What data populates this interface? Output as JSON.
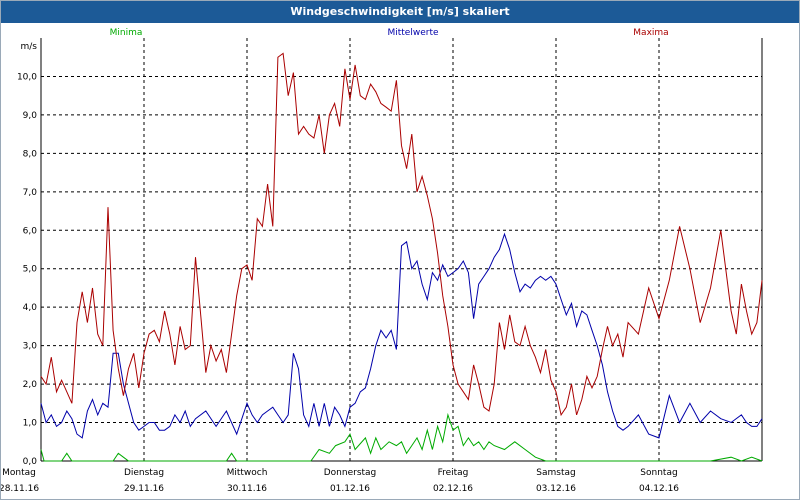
{
  "window": {
    "title": "Windgeschwindigkeit [m/s] skaliert"
  },
  "colors": {
    "minima": "#00aa00",
    "mittelwerte": "#0000aa",
    "maxima": "#aa0000",
    "titlebar": "#1c5a97"
  },
  "chart_data": {
    "type": "line",
    "title": "Windgeschwindigkeit [m/s] skaliert",
    "ylabel": "m/s",
    "ylim": [
      0,
      11
    ],
    "xlim": [
      0,
      7
    ],
    "yticks": [
      "0,0",
      "1,0",
      "2,0",
      "3,0",
      "4,0",
      "5,0",
      "6,0",
      "7,0",
      "8,0",
      "9,0",
      "10,0"
    ],
    "days": [
      {
        "name": "Montag",
        "date": "28.11.16"
      },
      {
        "name": "Dienstag",
        "date": "29.11.16"
      },
      {
        "name": "Mittwoch",
        "date": "30.11.16"
      },
      {
        "name": "Donnerstag",
        "date": "01.12.16"
      },
      {
        "name": "Freitag",
        "date": "02.12.16"
      },
      {
        "name": "Samstag",
        "date": "03.12.16"
      },
      {
        "name": "Sonntag",
        "date": "04.12.16"
      }
    ],
    "legend_position": "top",
    "series": [
      {
        "key": "minima",
        "name": "Minima",
        "x": [
          0,
          0.03,
          0.06,
          0.1,
          0.2,
          0.25,
          0.3,
          0.5,
          0.7,
          0.75,
          0.8,
          0.85,
          1.0,
          1.5,
          1.8,
          1.85,
          1.9,
          2.5,
          2.62,
          2.7,
          2.8,
          2.86,
          2.95,
          3.0,
          3.05,
          3.15,
          3.2,
          3.25,
          3.3,
          3.38,
          3.45,
          3.5,
          3.55,
          3.6,
          3.65,
          3.7,
          3.75,
          3.8,
          3.85,
          3.9,
          3.95,
          4.0,
          4.05,
          4.1,
          4.15,
          4.2,
          4.25,
          4.3,
          4.35,
          4.4,
          4.5,
          4.6,
          4.7,
          4.8,
          4.9,
          5.0,
          6.5,
          6.7,
          6.8,
          6.9,
          7.0
        ],
        "values": [
          0.3,
          0.0,
          0.0,
          0.0,
          0.0,
          0.2,
          0.0,
          0.0,
          0.0,
          0.2,
          0.1,
          0.0,
          0.0,
          0.0,
          0.0,
          0.2,
          0.0,
          0.0,
          0.0,
          0.3,
          0.2,
          0.4,
          0.5,
          0.7,
          0.3,
          0.6,
          0.2,
          0.6,
          0.3,
          0.5,
          0.4,
          0.5,
          0.2,
          0.4,
          0.6,
          0.3,
          0.8,
          0.3,
          0.9,
          0.5,
          1.2,
          0.8,
          0.9,
          0.4,
          0.6,
          0.4,
          0.5,
          0.3,
          0.5,
          0.4,
          0.3,
          0.5,
          0.3,
          0.1,
          0.0,
          0.0,
          0.0,
          0.1,
          0.0,
          0.1,
          0.0
        ]
      },
      {
        "key": "mittelwerte",
        "name": "Mittelwerte",
        "x": [
          0,
          0.05,
          0.1,
          0.15,
          0.2,
          0.25,
          0.3,
          0.35,
          0.4,
          0.45,
          0.5,
          0.55,
          0.6,
          0.65,
          0.7,
          0.75,
          0.8,
          0.9,
          0.95,
          1.0,
          1.05,
          1.1,
          1.15,
          1.2,
          1.25,
          1.3,
          1.35,
          1.4,
          1.45,
          1.5,
          1.6,
          1.7,
          1.8,
          1.9,
          2.0,
          2.05,
          2.1,
          2.15,
          2.2,
          2.25,
          2.3,
          2.35,
          2.4,
          2.45,
          2.5,
          2.55,
          2.6,
          2.65,
          2.7,
          2.75,
          2.8,
          2.85,
          2.9,
          2.95,
          3.0,
          3.05,
          3.1,
          3.15,
          3.2,
          3.25,
          3.3,
          3.35,
          3.4,
          3.45,
          3.5,
          3.55,
          3.6,
          3.65,
          3.7,
          3.75,
          3.8,
          3.85,
          3.9,
          3.95,
          4.0,
          4.05,
          4.1,
          4.15,
          4.2,
          4.25,
          4.3,
          4.35,
          4.4,
          4.45,
          4.5,
          4.55,
          4.6,
          4.65,
          4.7,
          4.75,
          4.8,
          4.85,
          4.9,
          4.95,
          5.0,
          5.05,
          5.1,
          5.15,
          5.2,
          5.25,
          5.3,
          5.35,
          5.4,
          5.45,
          5.5,
          5.55,
          5.6,
          5.65,
          5.7,
          5.8,
          5.9,
          6.0,
          6.1,
          6.2,
          6.3,
          6.4,
          6.5,
          6.6,
          6.7,
          6.8,
          6.85,
          6.9,
          6.95,
          7.0
        ],
        "values": [
          1.5,
          1.0,
          1.2,
          0.9,
          1.0,
          1.3,
          1.1,
          0.7,
          0.6,
          1.3,
          1.6,
          1.2,
          1.5,
          1.4,
          2.8,
          2.8,
          2.0,
          1.0,
          0.8,
          0.9,
          1.0,
          1.0,
          0.8,
          0.8,
          0.9,
          1.2,
          1.0,
          1.3,
          0.9,
          1.1,
          1.3,
          0.9,
          1.3,
          0.7,
          1.5,
          1.2,
          1.0,
          1.2,
          1.3,
          1.4,
          1.2,
          1.0,
          1.2,
          2.8,
          2.4,
          1.2,
          0.9,
          1.5,
          0.9,
          1.5,
          0.9,
          1.4,
          1.2,
          0.9,
          1.4,
          1.5,
          1.8,
          1.9,
          2.4,
          3.0,
          3.4,
          3.2,
          3.4,
          2.9,
          5.6,
          5.7,
          5.0,
          5.2,
          4.6,
          4.2,
          4.9,
          4.7,
          5.1,
          4.8,
          4.9,
          5.0,
          5.2,
          4.9,
          3.7,
          4.6,
          4.8,
          5.0,
          5.3,
          5.5,
          5.9,
          5.5,
          4.9,
          4.4,
          4.6,
          4.5,
          4.7,
          4.8,
          4.7,
          4.8,
          4.6,
          4.2,
          3.8,
          4.1,
          3.5,
          3.9,
          3.8,
          3.4,
          3.0,
          2.5,
          1.8,
          1.3,
          0.9,
          0.8,
          0.9,
          1.2,
          0.7,
          0.6,
          1.7,
          1.0,
          1.5,
          1.0,
          1.3,
          1.1,
          1.0,
          1.2,
          1.0,
          0.9,
          0.9,
          1.1
        ]
      },
      {
        "key": "maxima",
        "name": "Maxima",
        "x": [
          0,
          0.05,
          0.1,
          0.15,
          0.2,
          0.25,
          0.3,
          0.35,
          0.4,
          0.45,
          0.5,
          0.55,
          0.6,
          0.65,
          0.7,
          0.75,
          0.8,
          0.85,
          0.9,
          0.95,
          1.0,
          1.05,
          1.1,
          1.15,
          1.2,
          1.25,
          1.3,
          1.35,
          1.4,
          1.45,
          1.5,
          1.55,
          1.6,
          1.65,
          1.7,
          1.75,
          1.8,
          1.85,
          1.9,
          1.95,
          2.0,
          2.05,
          2.1,
          2.15,
          2.2,
          2.25,
          2.3,
          2.35,
          2.4,
          2.45,
          2.5,
          2.55,
          2.6,
          2.65,
          2.7,
          2.75,
          2.8,
          2.85,
          2.9,
          2.95,
          3.0,
          3.05,
          3.1,
          3.15,
          3.2,
          3.25,
          3.3,
          3.35,
          3.4,
          3.45,
          3.5,
          3.55,
          3.6,
          3.65,
          3.7,
          3.75,
          3.8,
          3.85,
          3.9,
          3.95,
          4.0,
          4.05,
          4.1,
          4.15,
          4.2,
          4.25,
          4.3,
          4.35,
          4.4,
          4.45,
          4.5,
          4.55,
          4.6,
          4.65,
          4.7,
          4.75,
          4.8,
          4.85,
          4.9,
          4.95,
          5.0,
          5.05,
          5.1,
          5.15,
          5.2,
          5.25,
          5.3,
          5.35,
          5.4,
          5.45,
          5.5,
          5.55,
          5.6,
          5.65,
          5.7,
          5.8,
          5.9,
          6.0,
          6.1,
          6.2,
          6.3,
          6.4,
          6.5,
          6.6,
          6.7,
          6.75,
          6.8,
          6.85,
          6.9,
          6.95,
          7.0
        ],
        "values": [
          2.2,
          2.0,
          2.7,
          1.8,
          2.1,
          1.8,
          1.5,
          3.6,
          4.4,
          3.6,
          4.5,
          3.3,
          3.0,
          6.6,
          3.4,
          2.4,
          1.7,
          2.4,
          2.8,
          1.9,
          2.8,
          3.3,
          3.4,
          3.1,
          3.9,
          3.3,
          2.5,
          3.5,
          2.9,
          3.0,
          5.3,
          3.8,
          2.3,
          3.0,
          2.6,
          2.9,
          2.3,
          3.3,
          4.3,
          5.0,
          5.1,
          4.7,
          6.3,
          6.1,
          7.2,
          6.1,
          10.5,
          10.6,
          9.5,
          10.1,
          8.5,
          8.7,
          8.5,
          8.4,
          9.0,
          8.0,
          9.0,
          9.3,
          8.7,
          10.2,
          9.4,
          10.3,
          9.5,
          9.4,
          9.8,
          9.6,
          9.3,
          9.2,
          9.1,
          9.9,
          8.2,
          7.6,
          8.5,
          7.0,
          7.4,
          6.9,
          6.3,
          5.4,
          4.3,
          3.5,
          2.5,
          2.0,
          1.8,
          1.6,
          2.5,
          2.0,
          1.4,
          1.3,
          2.0,
          3.6,
          2.9,
          3.8,
          3.1,
          3.0,
          3.5,
          3.0,
          2.7,
          2.3,
          2.9,
          2.1,
          1.8,
          1.2,
          1.4,
          2.0,
          1.2,
          1.6,
          2.2,
          1.9,
          2.2,
          2.9,
          3.5,
          3.0,
          3.3,
          2.7,
          3.6,
          3.3,
          4.5,
          3.7,
          4.7,
          6.1,
          5.0,
          3.6,
          4.5,
          6.0,
          3.9,
          3.3,
          4.6,
          3.9,
          3.3,
          3.6,
          4.7
        ]
      }
    ]
  }
}
